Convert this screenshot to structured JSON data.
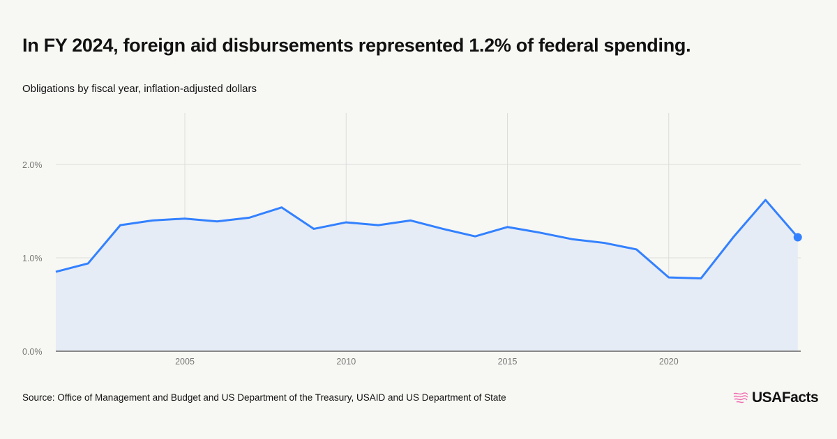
{
  "header": {
    "title": "In FY 2024, foreign aid disbursements represented 1.2% of federal spending.",
    "subtitle": "Obligations by fiscal year, inflation-adjusted dollars"
  },
  "footer": {
    "source": "Source: Office of Management and Budget and US Department of the Treasury, USAID and US Department of State",
    "logo": "USAFacts"
  },
  "colors": {
    "line": "#3381ff",
    "fill": "#e6ecf5",
    "grid": "#dcdcdc",
    "axis": "#888888",
    "logo_icon": "#f06bb0"
  },
  "chart_data": {
    "type": "area",
    "x": [
      2001,
      2002,
      2003,
      2004,
      2005,
      2006,
      2007,
      2008,
      2009,
      2010,
      2011,
      2012,
      2013,
      2014,
      2015,
      2016,
      2017,
      2018,
      2019,
      2020,
      2021,
      2022,
      2023,
      2024
    ],
    "values": [
      0.85,
      0.94,
      1.35,
      1.4,
      1.42,
      1.39,
      1.43,
      1.54,
      1.31,
      1.38,
      1.35,
      1.4,
      1.31,
      1.23,
      1.33,
      1.27,
      1.2,
      1.16,
      1.09,
      0.79,
      0.78,
      1.22,
      1.62,
      1.22
    ],
    "unit": "%",
    "xlim": [
      2001,
      2024.3
    ],
    "ylim": [
      0,
      2.5
    ],
    "yticks": [
      {
        "v": 0,
        "label": "0.0%"
      },
      {
        "v": 1,
        "label": "1.0%"
      },
      {
        "v": 2,
        "label": "2.0%"
      }
    ],
    "xticks": [
      {
        "v": 2005,
        "label": "2005"
      },
      {
        "v": 2010,
        "label": "2010"
      },
      {
        "v": 2015,
        "label": "2015"
      },
      {
        "v": 2020,
        "label": "2020"
      }
    ],
    "grid": true,
    "highlight_last_point": true
  }
}
